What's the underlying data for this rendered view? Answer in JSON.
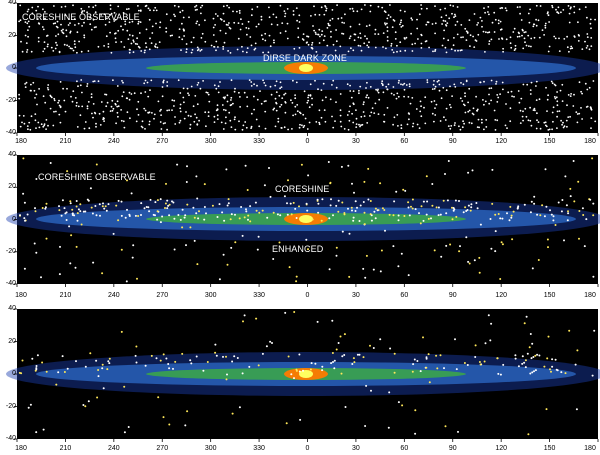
{
  "panels": [
    {
      "captions": [
        "CORESHINE OBSERVABLE",
        "DIRSE DARK ZONE"
      ]
    },
    {
      "captions": [
        "CORESHINE OBSERVABLE",
        "CORESHINE",
        "ENHANCED"
      ]
    },
    {
      "captions": []
    }
  ],
  "y_ticks": [
    "40",
    "20",
    "0",
    "-20",
    "-40"
  ],
  "x_ticks": [
    "180",
    "210",
    "240",
    "270",
    "300",
    "330",
    "0",
    "30",
    "60",
    "90",
    "120",
    "150",
    "180"
  ],
  "colors": {
    "background": "#000000",
    "plane": "#1a3fb0",
    "band": "#2f6fd0",
    "ridge": "#3fb43a",
    "core": "#ff7a00",
    "center": "#ffff60",
    "points_white": "#ffffff",
    "points_yellow": "#ffe85a"
  }
}
